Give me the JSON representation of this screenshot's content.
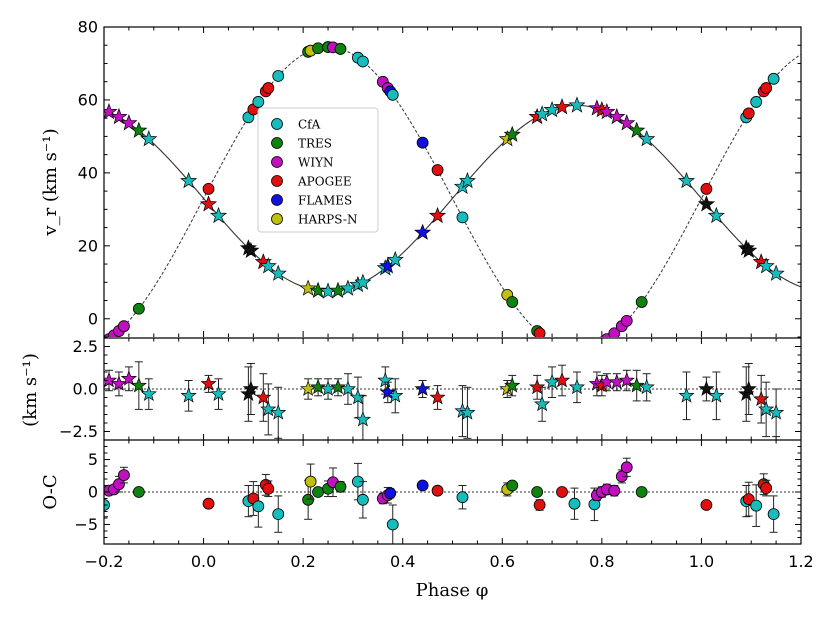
{
  "chart_data": {
    "type": "scatter",
    "xlabel": "Phase φ",
    "xlim": [
      -0.2,
      1.2
    ],
    "xticks": [
      "−0.2",
      "0.0",
      "0.2",
      "0.4",
      "0.6",
      "0.8",
      "1.0",
      "1.2"
    ],
    "panels": [
      {
        "id": "rv",
        "ylabel": "v_r (km s⁻¹)",
        "ylim": [
          -5,
          80
        ],
        "yticks": [
          "0",
          "20",
          "40",
          "60",
          "80"
        ],
        "models": {
          "primary": {
            "gamma": 33.0,
            "K": 25.5,
            "phase_of_max": 0.75,
            "style": "solid"
          },
          "secondary": {
            "gamma": 33.0,
            "K": 41.5,
            "phase_of_max": 0.25,
            "style": "dashed"
          }
        }
      },
      {
        "id": "resid_primary",
        "ylabel": "(km s⁻¹)",
        "ylim": [
          -3,
          3
        ],
        "yticks": [
          "−2.5",
          "0.0",
          "2.5"
        ]
      },
      {
        "id": "resid_secondary",
        "ylabel": "O-C",
        "ylim": [
          -8,
          8
        ],
        "yticks": [
          "−5",
          "0",
          "5"
        ]
      }
    ],
    "legend": {
      "placement": "center",
      "entries": [
        {
          "name": "CfA",
          "color": "#17bdbd"
        },
        {
          "name": "TRES",
          "color": "#108210"
        },
        {
          "name": "WIYN",
          "color": "#c010c0"
        },
        {
          "name": "APOGEE",
          "color": "#e01010"
        },
        {
          "name": "FLAMES",
          "color": "#1010e0"
        },
        {
          "name": "HARPS-N",
          "color": "#c0c010"
        }
      ]
    },
    "primary_stars": [
      {
        "x": -0.19,
        "c": "WIYN"
      },
      {
        "x": -0.17,
        "c": "WIYN"
      },
      {
        "x": -0.15,
        "c": "WIYN"
      },
      {
        "x": -0.13,
        "c": "TRES"
      },
      {
        "x": -0.11,
        "c": "CfA"
      },
      {
        "x": -0.03,
        "c": "CfA"
      },
      {
        "x": 0.01,
        "c": "APOGEE"
      },
      {
        "x": 0.03,
        "c": "CfA"
      },
      {
        "x": 0.09,
        "c": "black"
      },
      {
        "x": 0.095,
        "c": "black"
      },
      {
        "x": 0.12,
        "c": "APOGEE"
      },
      {
        "x": 0.13,
        "c": "CfA"
      },
      {
        "x": 0.15,
        "c": "CfA"
      },
      {
        "x": 0.21,
        "c": "HARPS-N"
      },
      {
        "x": 0.23,
        "c": "TRES"
      },
      {
        "x": 0.25,
        "c": "CfA"
      },
      {
        "x": 0.27,
        "c": "TRES"
      },
      {
        "x": 0.29,
        "c": "CfA"
      },
      {
        "x": 0.31,
        "c": "CfA"
      },
      {
        "x": 0.32,
        "c": "CfA"
      },
      {
        "x": 0.365,
        "c": "CfA"
      },
      {
        "x": 0.37,
        "c": "FLAMES"
      },
      {
        "x": 0.385,
        "c": "CfA"
      },
      {
        "x": 0.44,
        "c": "FLAMES"
      },
      {
        "x": 0.47,
        "c": "APOGEE"
      },
      {
        "x": 0.52,
        "c": "CfA"
      },
      {
        "x": 0.53,
        "c": "CfA"
      },
      {
        "x": 0.61,
        "c": "HARPS-N"
      },
      {
        "x": 0.62,
        "c": "TRES"
      },
      {
        "x": 0.67,
        "c": "APOGEE"
      },
      {
        "x": 0.68,
        "c": "CfA"
      },
      {
        "x": 0.7,
        "c": "CfA"
      },
      {
        "x": 0.72,
        "c": "APOGEE"
      },
      {
        "x": 0.75,
        "c": "CfA"
      },
      {
        "x": 0.79,
        "c": "WIYN"
      },
      {
        "x": 0.8,
        "c": "APOGEE"
      },
      {
        "x": 0.81,
        "c": "WIYN"
      },
      {
        "x": 0.83,
        "c": "WIYN"
      },
      {
        "x": 0.85,
        "c": "WIYN"
      },
      {
        "x": 0.87,
        "c": "TRES"
      },
      {
        "x": 0.89,
        "c": "CfA"
      },
      {
        "x": 0.97,
        "c": "CfA"
      },
      {
        "x": 1.01,
        "c": "black"
      },
      {
        "x": 1.03,
        "c": "CfA"
      },
      {
        "x": 1.09,
        "c": "black"
      },
      {
        "x": 1.095,
        "c": "black"
      },
      {
        "x": 1.12,
        "c": "APOGEE"
      },
      {
        "x": 1.13,
        "c": "CfA"
      },
      {
        "x": 1.15,
        "c": "CfA"
      }
    ],
    "secondary_points": [
      {
        "x": -0.2,
        "c": "CfA"
      },
      {
        "x": -0.19,
        "c": "WIYN"
      },
      {
        "x": -0.18,
        "c": "WIYN"
      },
      {
        "x": -0.17,
        "c": "WIYN"
      },
      {
        "x": -0.16,
        "c": "WIYN"
      },
      {
        "x": -0.13,
        "c": "TRES"
      },
      {
        "x": 0.01,
        "c": "APOGEE"
      },
      {
        "x": 0.09,
        "c": "CfA"
      },
      {
        "x": 0.1,
        "c": "APOGEE"
      },
      {
        "x": 0.11,
        "c": "CfA"
      },
      {
        "x": 0.125,
        "c": "APOGEE"
      },
      {
        "x": 0.13,
        "c": "APOGEE"
      },
      {
        "x": 0.15,
        "c": "CfA"
      },
      {
        "x": 0.21,
        "c": "TRES"
      },
      {
        "x": 0.215,
        "c": "HARPS-N"
      },
      {
        "x": 0.23,
        "c": "TRES"
      },
      {
        "x": 0.25,
        "c": "TRES"
      },
      {
        "x": 0.26,
        "c": "WIYN"
      },
      {
        "x": 0.275,
        "c": "TRES"
      },
      {
        "x": 0.31,
        "c": "CfA"
      },
      {
        "x": 0.32,
        "c": "CfA"
      },
      {
        "x": 0.36,
        "c": "WIYN"
      },
      {
        "x": 0.37,
        "c": "WIYN"
      },
      {
        "x": 0.375,
        "c": "FLAMES"
      },
      {
        "x": 0.38,
        "c": "CfA"
      },
      {
        "x": 0.44,
        "c": "FLAMES"
      },
      {
        "x": 0.47,
        "c": "APOGEE"
      },
      {
        "x": 0.52,
        "c": "CfA"
      },
      {
        "x": 0.61,
        "c": "HARPS-N"
      },
      {
        "x": 0.62,
        "c": "TRES"
      },
      {
        "x": 0.67,
        "c": "TRES"
      },
      {
        "x": 0.675,
        "c": "APOGEE"
      },
      {
        "x": 0.72,
        "c": "APOGEE"
      },
      {
        "x": 0.745,
        "c": "CfA"
      },
      {
        "x": 0.785,
        "c": "CfA"
      },
      {
        "x": 0.79,
        "c": "WIYN"
      },
      {
        "x": 0.8,
        "c": "WIYN"
      },
      {
        "x": 0.81,
        "c": "WIYN"
      },
      {
        "x": 0.825,
        "c": "WIYN"
      },
      {
        "x": 0.84,
        "c": "WIYN"
      },
      {
        "x": 0.85,
        "c": "WIYN"
      },
      {
        "x": 0.88,
        "c": "TRES"
      },
      {
        "x": 1.01,
        "c": "APOGEE"
      },
      {
        "x": 1.09,
        "c": "CfA"
      },
      {
        "x": 1.095,
        "c": "APOGEE"
      },
      {
        "x": 1.11,
        "c": "CfA"
      },
      {
        "x": 1.125,
        "c": "APOGEE"
      },
      {
        "x": 1.13,
        "c": "APOGEE"
      },
      {
        "x": 1.145,
        "c": "CfA"
      }
    ],
    "resid_primary_values": [
      0.5,
      0.3,
      0.6,
      0.2,
      -0.3,
      -0.4,
      0.3,
      -0.3,
      -0.3,
      0.0,
      -0.5,
      -1.2,
      -1.4,
      0.0,
      0.1,
      0.0,
      0.1,
      0.0,
      -0.5,
      -1.8,
      0.5,
      -0.2,
      -0.4,
      0.0,
      -0.5,
      -1.3,
      -1.4,
      0.0,
      0.2,
      0.1,
      -0.9,
      0.4,
      0.5,
      0.1,
      0.3,
      0.2,
      0.4,
      0.4,
      0.5,
      0.2,
      0.1,
      -0.4,
      0.0,
      -0.4,
      -0.3,
      0.0,
      -0.6,
      -1.2,
      -1.4
    ],
    "resid_secondary_values": [
      -2.0,
      0.2,
      0.4,
      1.2,
      2.6,
      0.0,
      -1.8,
      -1.4,
      -1.0,
      -2.2,
      1.1,
      0.5,
      -3.4,
      -1.2,
      1.6,
      0.0,
      0.5,
      1.5,
      0.8,
      1.6,
      -1.2,
      -1.0,
      -0.5,
      -0.2,
      -5.0,
      1.0,
      0.2,
      -0.8,
      0.4,
      1.0,
      0.0,
      -2.0,
      0.0,
      -1.8,
      -1.9,
      -0.5,
      0.0,
      0.4,
      0.2,
      2.4,
      3.8,
      0.0,
      -2.0,
      -1.4,
      -1.1,
      -2.1,
      1.2,
      0.6,
      -3.4
    ],
    "resid_primary_err": [
      0.6,
      0.7,
      0.7,
      1.4,
      0.9,
      0.9,
      0.5,
      0.9,
      1.6,
      1.5,
      1.4,
      1.5,
      1.5,
      0.6,
      0.5,
      0.6,
      0.5,
      0.9,
      1.2,
      1.4,
      0.8,
      0.6,
      1.0,
      0.5,
      0.7,
      1.5,
      1.5,
      0.5,
      0.6,
      0.7,
      1.0,
      0.9,
      0.9,
      0.9,
      0.7,
      0.6,
      0.5,
      0.5,
      0.6,
      0.9,
      0.8,
      1.4,
      0.7,
      1.4,
      1.6,
      1.5,
      1.4,
      1.6,
      1.4
    ],
    "resid_secondary_err": [
      1.8,
      0.5,
      0.6,
      1.2,
      1.2,
      0.5,
      0.6,
      2.4,
      2.6,
      3.2,
      1.6,
      1.2,
      2.8,
      3.0,
      2.7,
      0.6,
      1.2,
      2.2,
      0.8,
      2.8,
      2.8,
      0.8,
      1.2,
      0.7,
      3.0,
      0.5,
      0.6,
      1.8,
      1.0,
      0.5,
      0.6,
      0.8,
      0.6,
      2.4,
      2.5,
      0.8,
      0.8,
      0.8,
      0.8,
      1.0,
      1.4,
      0.6,
      0.6,
      2.4,
      2.6,
      3.2,
      1.6,
      1.2,
      2.8
    ]
  }
}
